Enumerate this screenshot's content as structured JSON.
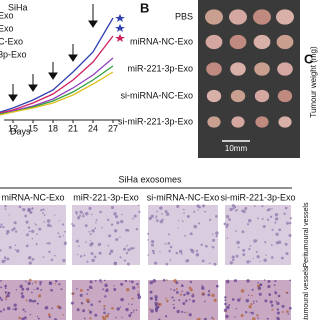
{
  "panel_a": {
    "title": "SiHa",
    "legend": [
      "Exo",
      "Exo",
      "C-Exo",
      "3p-Exo"
    ],
    "xticks": [
      12,
      15,
      18,
      21,
      24,
      27
    ],
    "xlabel": "Days"
  },
  "panel_b": {
    "label": "B",
    "rows": [
      "PBS",
      "miRNA-NC-Exo",
      "miR-221-3p-Exo",
      "si-miRNA-NC-Exo",
      "si-miR-221-3p-Exo"
    ],
    "scale_bar": "10mm"
  },
  "panel_c": {
    "label": "C",
    "ylabel": "Tumour weight (mg)"
  },
  "panel_d": {
    "title": "SiHa exosomes",
    "columns": [
      "miRNA-NC-Exo",
      "miR-221-3p-Exo",
      "si-miRNA-NC-Exo",
      "si-miR-221-3p-Exo"
    ],
    "rows": [
      "Peritumoural vessels",
      "Intratumoural vessels"
    ]
  }
}
